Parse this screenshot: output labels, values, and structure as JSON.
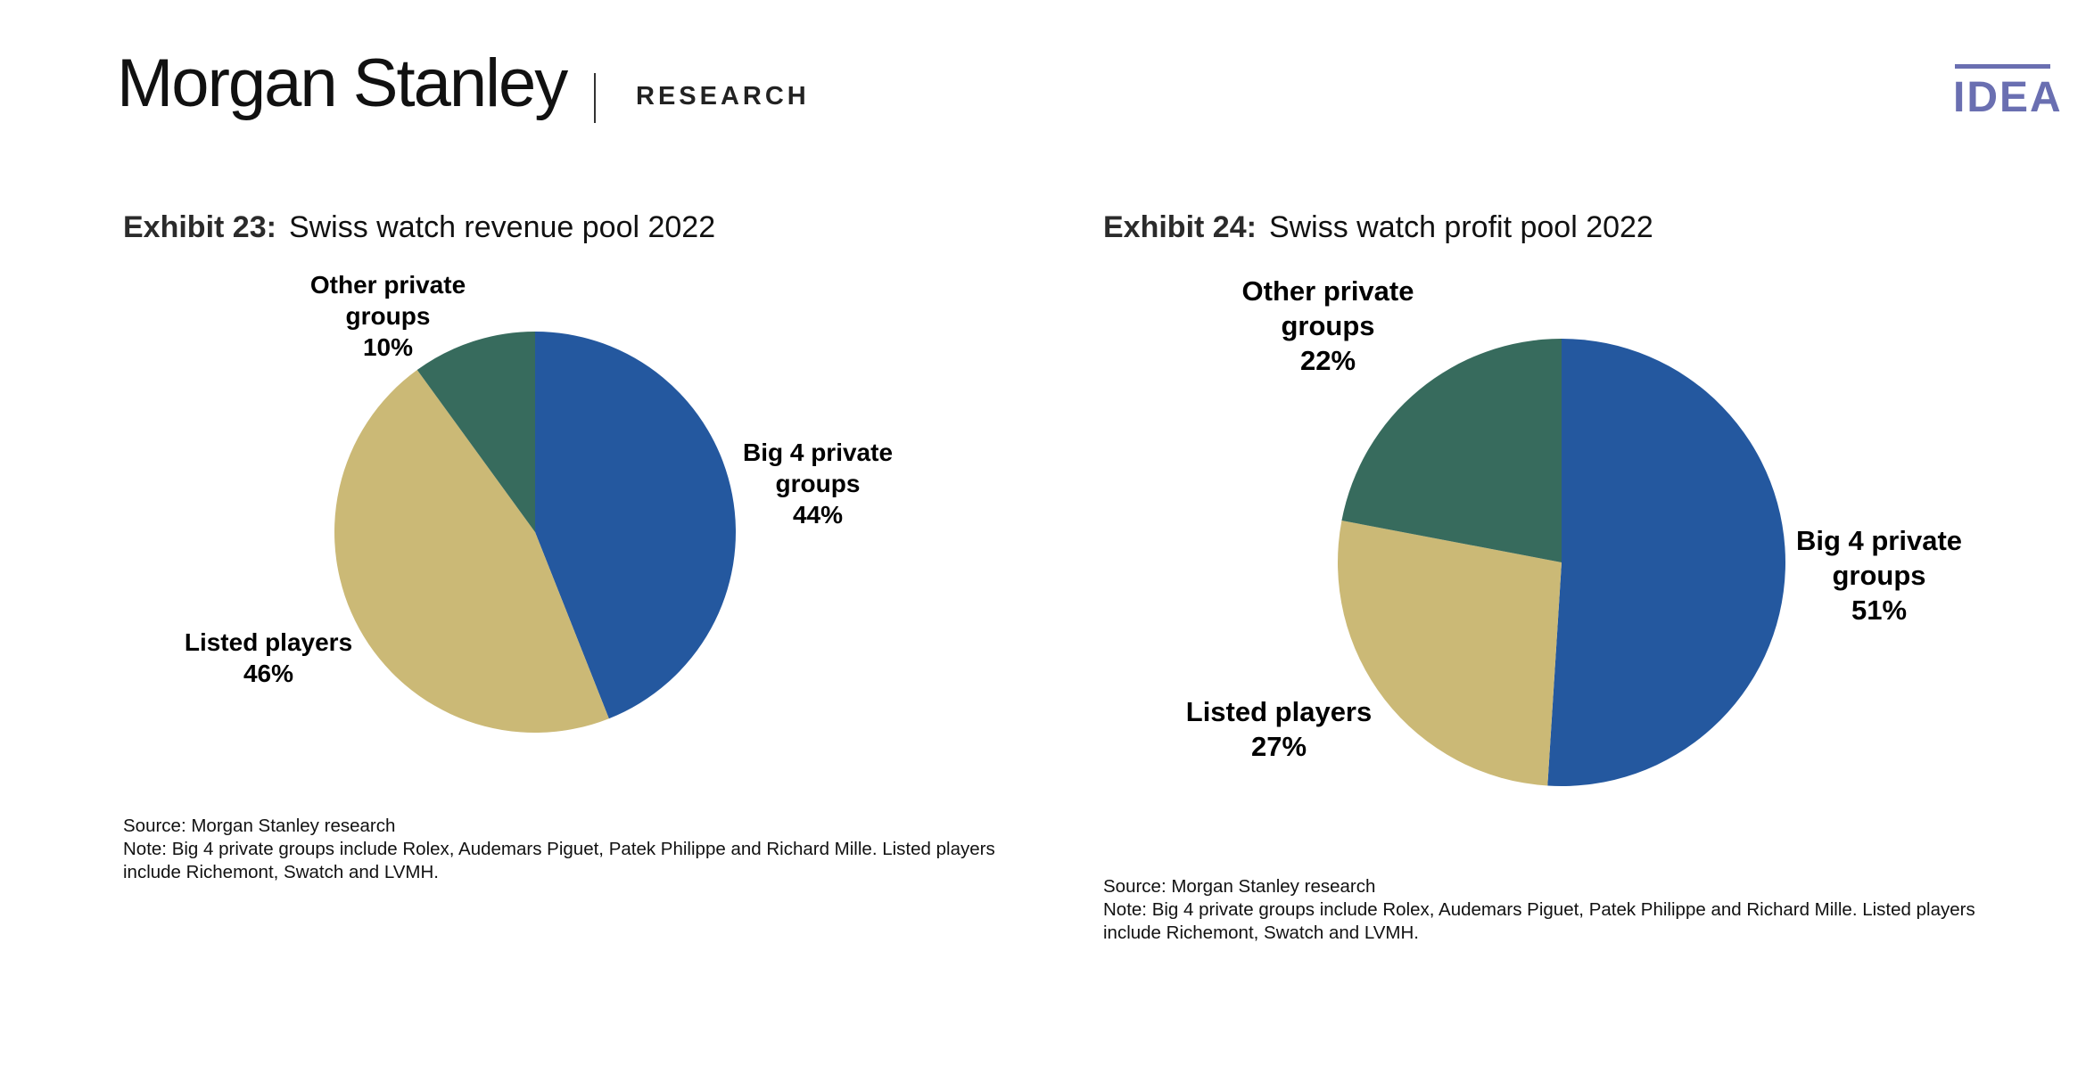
{
  "header": {
    "brand": "Morgan Stanley",
    "section": "RESEARCH",
    "badge": "IDEA"
  },
  "colors": {
    "big4": "#24589f",
    "listed": "#cbb976",
    "other": "#376b5d",
    "idea": "#6a6fb1"
  },
  "exhibits": [
    {
      "number": "Exhibit 23:",
      "title": "Swiss watch revenue pool 2022",
      "source": "Source: Morgan Stanley research",
      "note_line1": "Note: Big 4 private groups include Rolex, Audemars Piguet, Patek Philippe and Richard Mille. Listed players",
      "note_line2": "include Richemont, Swatch and LVMH.",
      "labels": {
        "other": [
          "Other private",
          "groups",
          "10%"
        ],
        "big4": [
          "Big 4 private",
          "groups",
          "44%"
        ],
        "listed": [
          "Listed players",
          "46%"
        ]
      }
    },
    {
      "number": "Exhibit 24:",
      "title": "Swiss watch profit pool 2022",
      "source": "Source: Morgan Stanley research",
      "note_line1": "Note: Big 4 private groups include Rolex, Audemars Piguet, Patek Philippe and Richard Mille. Listed players",
      "note_line2": "include Richemont, Swatch and LVMH.",
      "labels": {
        "other": [
          "Other private",
          "groups",
          "22%"
        ],
        "big4": [
          "Big 4 private",
          "groups",
          "51%"
        ],
        "listed": [
          "Listed players",
          "27%"
        ]
      }
    }
  ],
  "chart_data": [
    {
      "type": "pie",
      "title": "Swiss watch revenue pool 2022",
      "categories": [
        "Big 4 private groups",
        "Listed players",
        "Other private groups"
      ],
      "values": [
        44,
        46,
        10
      ],
      "unit": "%"
    },
    {
      "type": "pie",
      "title": "Swiss watch profit pool 2022",
      "categories": [
        "Big 4 private groups",
        "Listed players",
        "Other private groups"
      ],
      "values": [
        51,
        27,
        22
      ],
      "unit": "%"
    }
  ]
}
